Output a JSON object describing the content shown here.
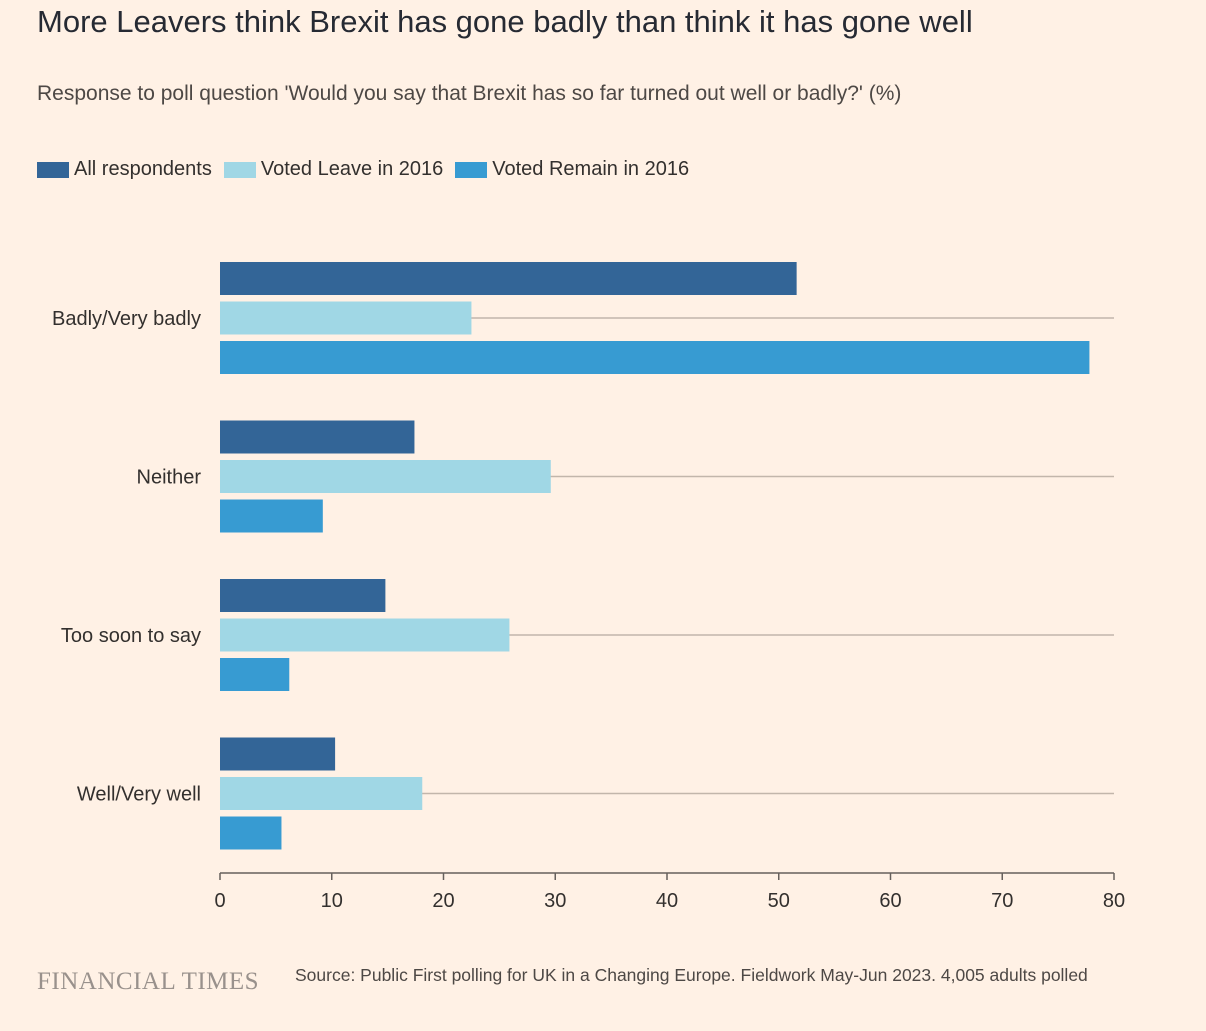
{
  "title": "More Leavers think Brexit has gone badly than think it has gone well",
  "subtitle": "Response to poll question 'Would you say that Brexit has so far turned out well or badly?' (%)",
  "legend": [
    {
      "label": "All respondents",
      "color": "#336597"
    },
    {
      "label": "Voted Leave in 2016",
      "color": "#a0d7e5"
    },
    {
      "label": "Voted Remain in 2016",
      "color": "#379bd2"
    }
  ],
  "chart_data": {
    "type": "bar",
    "orientation": "horizontal",
    "title": "More Leavers think Brexit has gone badly than think it has gone well",
    "subtitle": "Response to poll question 'Would you say that Brexit has so far turned out well or badly?' (%)",
    "categories": [
      "Badly/Very badly",
      "Neither",
      "Too soon to say",
      "Well/Very well"
    ],
    "series": [
      {
        "name": "All respondents",
        "color": "#336597",
        "values": [
          51.6,
          17.4,
          14.8,
          10.3
        ]
      },
      {
        "name": "Voted Leave in 2016",
        "color": "#a0d7e5",
        "values": [
          22.5,
          29.6,
          25.9,
          18.1
        ]
      },
      {
        "name": "Voted Remain in 2016",
        "color": "#379bd2",
        "values": [
          77.8,
          9.2,
          6.2,
          5.5
        ]
      }
    ],
    "xlim": [
      0,
      80
    ],
    "xticks": [
      0,
      10,
      20,
      30,
      40,
      50,
      60,
      70,
      80
    ],
    "xlabel": "",
    "ylabel": "",
    "legend_position": "top-left",
    "grid": false
  },
  "footer": {
    "logo": "FINANCIAL TIMES",
    "source": "Source: Public First polling for UK in a Changing Europe. Fieldwork May-Jun 2023. 4,005 adults polled"
  }
}
